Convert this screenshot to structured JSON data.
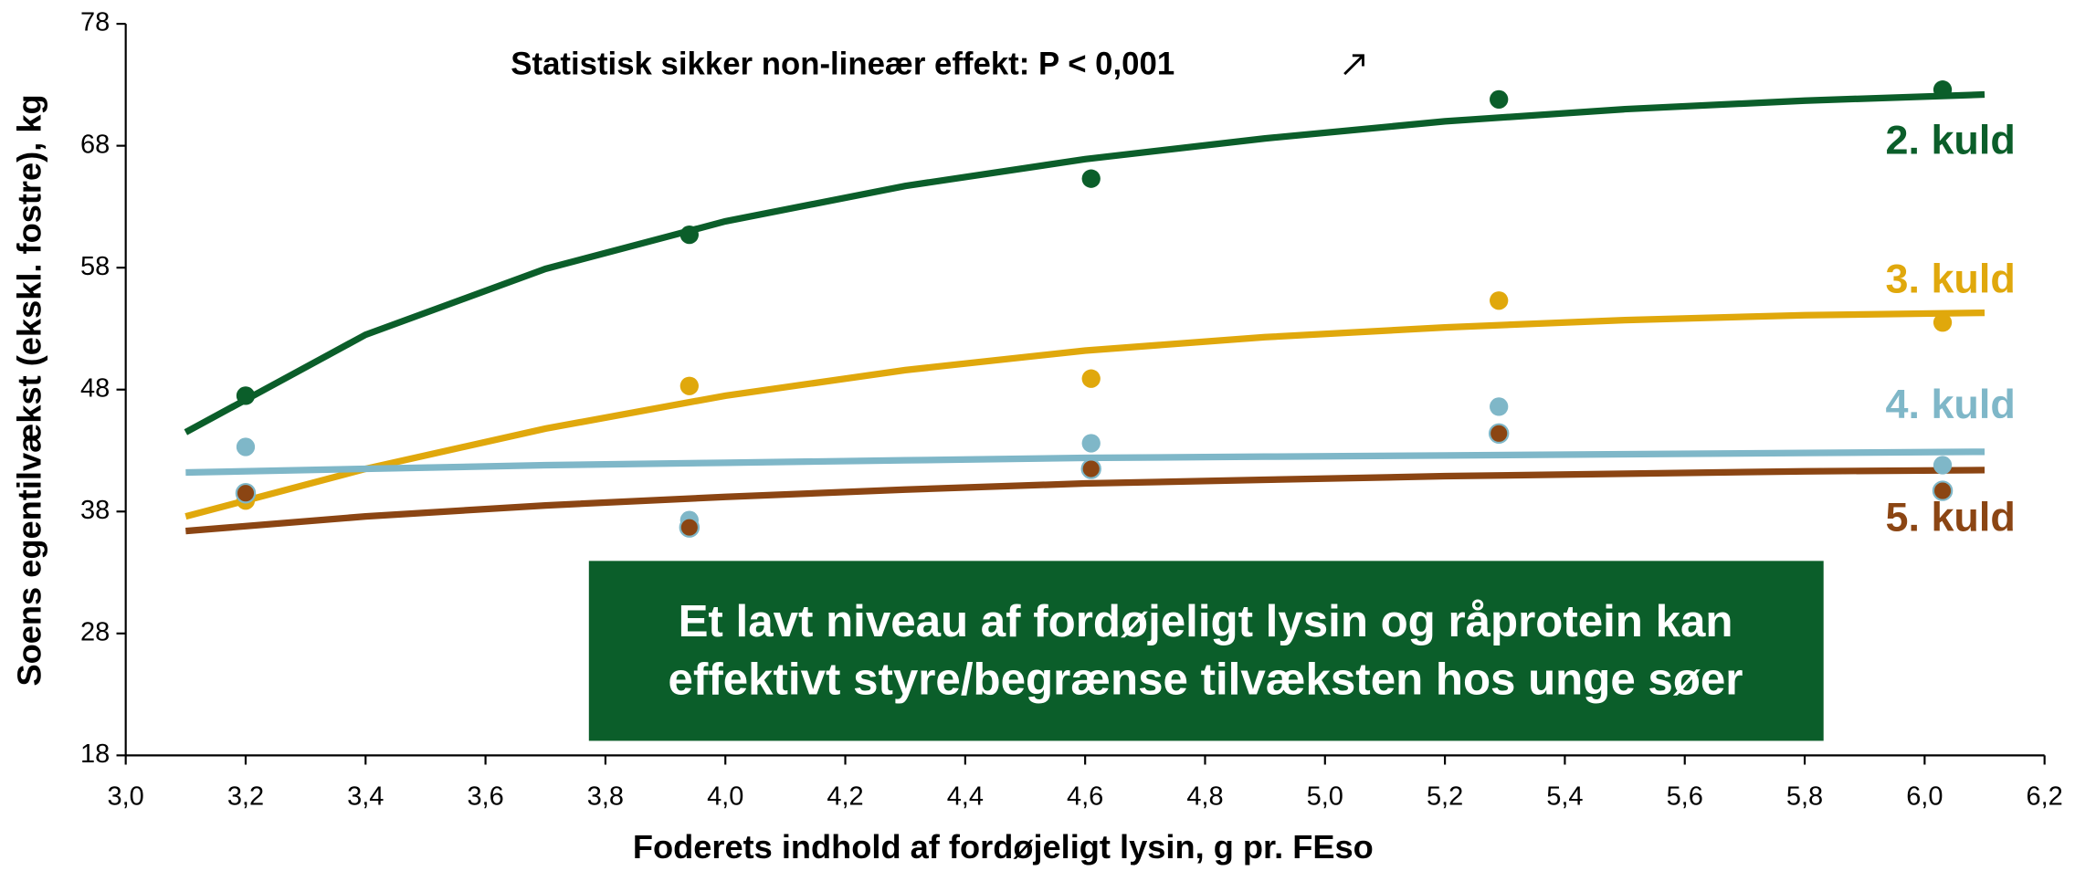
{
  "chart_data": {
    "type": "scatter",
    "annotation": "Statistisk sikker non-lineær effekt: P < 0,001",
    "box_text": [
      "Et lavt niveau af fordøjeligt lysin og råprotein kan",
      "effektivt styre/begrænse tilvæksten hos unge søer"
    ],
    "x_label": "Foderets indhold af fordøjeligt lysin, g pr. FEso",
    "y_label": "Soens egentilvækst (ekskl. fostre), kg",
    "xlim": [
      3.0,
      6.2
    ],
    "ylim": [
      18,
      78
    ],
    "xticks": [
      {
        "value": 3.0,
        "label": "3,0"
      },
      {
        "value": 3.2,
        "label": "3,2"
      },
      {
        "value": 3.4,
        "label": "3,4"
      },
      {
        "value": 3.6,
        "label": "3,6"
      },
      {
        "value": 3.8,
        "label": "3,8"
      },
      {
        "value": 4.0,
        "label": "4,0"
      },
      {
        "value": 4.2,
        "label": "4,2"
      },
      {
        "value": 4.4,
        "label": "4,4"
      },
      {
        "value": 4.6,
        "label": "4,6"
      },
      {
        "value": 4.8,
        "label": "4,8"
      },
      {
        "value": 5.0,
        "label": "5,0"
      },
      {
        "value": 5.2,
        "label": "5,2"
      },
      {
        "value": 5.4,
        "label": "5,4"
      },
      {
        "value": 5.6,
        "label": "5,6"
      },
      {
        "value": 5.8,
        "label": "5,8"
      },
      {
        "value": 6.0,
        "label": "6,0"
      },
      {
        "value": 6.2,
        "label": "6,2"
      }
    ],
    "yticks": [
      18,
      28,
      38,
      48,
      58,
      68,
      78
    ],
    "x": [
      3.2,
      3.94,
      4.61,
      5.29,
      6.03
    ],
    "fit_x": [
      3.1,
      3.4,
      3.7,
      4.0,
      4.3,
      4.6,
      4.9,
      5.2,
      5.5,
      5.8,
      6.1
    ],
    "series": [
      {
        "name": "2. kuld",
        "color": "#0b5e2a",
        "values": [
          47.5,
          60.7,
          65.3,
          71.8,
          72.6
        ],
        "fit": [
          44.5,
          52.5,
          57.9,
          61.8,
          64.7,
          66.9,
          68.6,
          70.0,
          71.0,
          71.7,
          72.2
        ]
      },
      {
        "name": "3. kuld",
        "color": "#e0a80c",
        "values": [
          38.9,
          48.3,
          48.9,
          55.3,
          53.5
        ],
        "fit": [
          37.6,
          41.5,
          44.8,
          47.5,
          49.6,
          51.2,
          52.3,
          53.1,
          53.7,
          54.1,
          54.3
        ]
      },
      {
        "name": "4. kuld",
        "color": "#7fb7c8",
        "values": [
          43.3,
          37.3,
          43.6,
          46.6,
          41.8
        ],
        "fit": [
          41.2,
          41.5,
          41.8,
          42.0,
          42.2,
          42.4,
          42.5,
          42.6,
          42.7,
          42.8,
          42.9
        ]
      },
      {
        "name": "5. kuld",
        "color": "#8b4513",
        "values": [
          39.5,
          36.7,
          41.5,
          44.4,
          39.7
        ],
        "fit": [
          36.4,
          37.6,
          38.5,
          39.2,
          39.8,
          40.3,
          40.6,
          40.9,
          41.1,
          41.3,
          41.4
        ]
      }
    ]
  }
}
